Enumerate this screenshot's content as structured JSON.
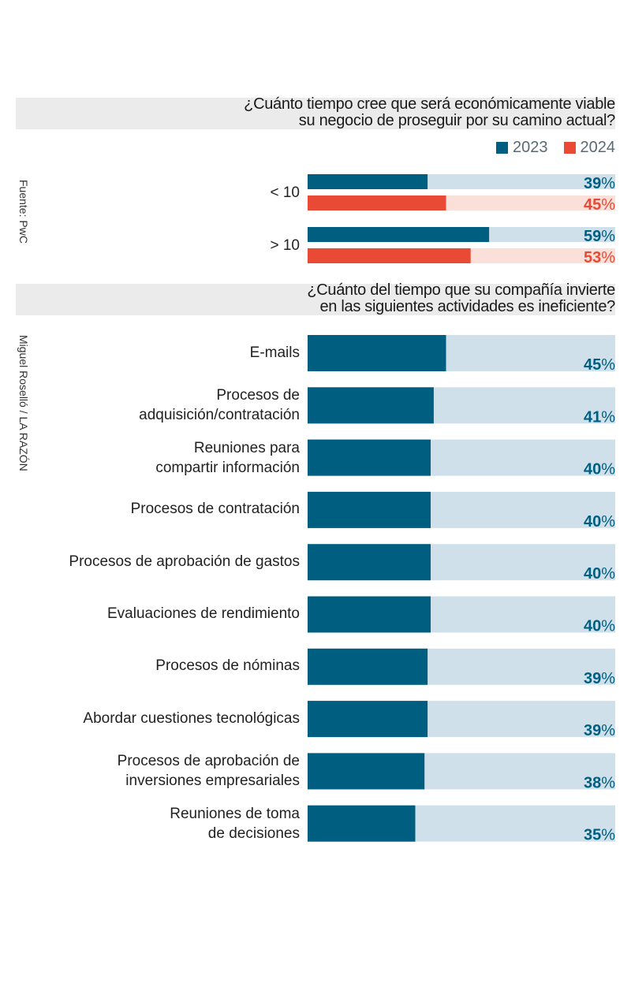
{
  "colors": {
    "c2023": "#005f80",
    "c2023_track": "#cfe0ea",
    "c2024": "#e84a35",
    "c2024_track": "#fbe0d9"
  },
  "credits": {
    "source": "Fuente: PwC",
    "author": "Miguel Roselló / LA RAZÓN"
  },
  "chart_data": [
    {
      "type": "bar",
      "orientation": "horizontal",
      "title": "¿Cuánto tiempo cree que será económicamente viable\nsu negocio de proseguir por su camino actual?",
      "categories": [
        "< 10",
        "> 10"
      ],
      "series": [
        {
          "name": "2023",
          "values": [
            39,
            59
          ]
        },
        {
          "name": "2024",
          "values": [
            45,
            53
          ]
        }
      ],
      "unit": "%",
      "xlim": [
        0,
        100
      ],
      "legend": "top-right"
    },
    {
      "type": "bar",
      "orientation": "horizontal",
      "title": "¿Cuánto del tiempo que su compañía invierte\nen las siguientes actividades es ineficiente?",
      "categories": [
        "E-mails",
        "Procesos de\nadquisición/contratación",
        "Reuniones para\ncompartir información",
        "Procesos de contratación",
        "Procesos de aprobación de gastos",
        "Evaluaciones de rendimiento",
        "Procesos de nóminas",
        "Abordar cuestiones tecnológicas",
        "Procesos de aprobación de\ninversiones empresariales",
        "Reuniones de toma\nde decisiones"
      ],
      "values": [
        45,
        41,
        40,
        40,
        40,
        40,
        39,
        39,
        38,
        35
      ],
      "unit": "%",
      "xlim": [
        0,
        100
      ]
    }
  ]
}
